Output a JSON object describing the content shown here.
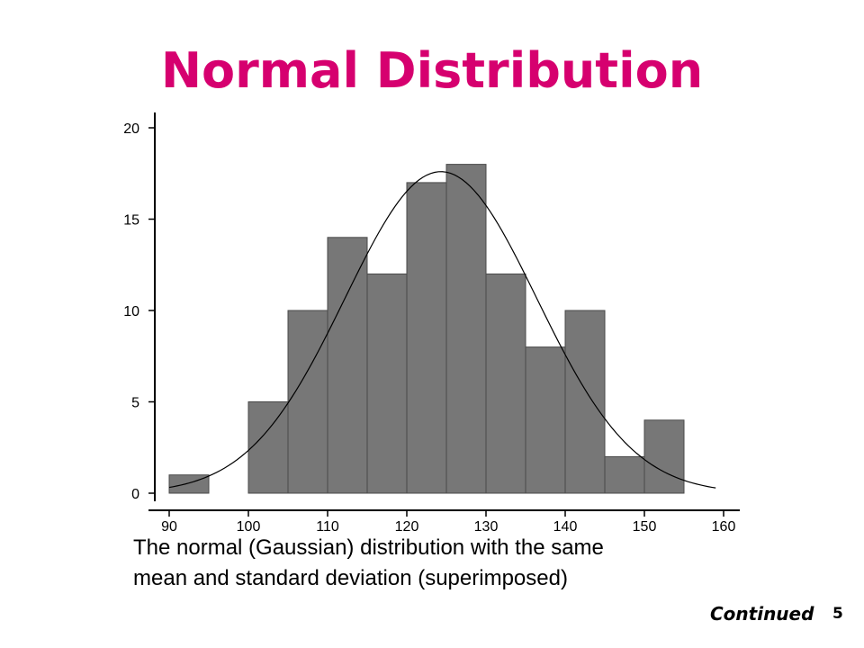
{
  "slide": {
    "title": "Normal Distribution",
    "caption_line1": "The normal (Gaussian) distribution with the same",
    "caption_line2": "mean and standard deviation (superimposed)",
    "continued": "Continued",
    "page_number": "5"
  },
  "colors": {
    "title": "#d6006f",
    "bar_fill": "#777777",
    "bar_stroke": "#4a4a4a",
    "axis": "#000000",
    "curve": "#000000"
  },
  "chart_data": {
    "type": "bar",
    "subtype": "histogram-with-normal-curve",
    "bin_width": 5,
    "bins": [
      {
        "x0": 90,
        "x1": 95,
        "count": 1
      },
      {
        "x0": 95,
        "x1": 100,
        "count": 0
      },
      {
        "x0": 100,
        "x1": 105,
        "count": 5
      },
      {
        "x0": 105,
        "x1": 110,
        "count": 10
      },
      {
        "x0": 110,
        "x1": 115,
        "count": 14
      },
      {
        "x0": 115,
        "x1": 120,
        "count": 12
      },
      {
        "x0": 120,
        "x1": 125,
        "count": 17
      },
      {
        "x0": 125,
        "x1": 130,
        "count": 18
      },
      {
        "x0": 130,
        "x1": 135,
        "count": 12
      },
      {
        "x0": 135,
        "x1": 140,
        "count": 8
      },
      {
        "x0": 140,
        "x1": 145,
        "count": 10
      },
      {
        "x0": 145,
        "x1": 150,
        "count": 2
      },
      {
        "x0": 150,
        "x1": 155,
        "count": 4
      }
    ],
    "normal_curve": {
      "mean": 124.3,
      "sd": 12.1,
      "peak": 17.6,
      "x_range": [
        90,
        159
      ]
    },
    "xlim": [
      90,
      160
    ],
    "ylim": [
      0,
      20
    ],
    "x_ticks": [
      "90",
      "100",
      "110",
      "120",
      "130",
      "140",
      "150",
      "160"
    ],
    "y_ticks": [
      "0",
      "5",
      "10",
      "15",
      "20"
    ],
    "xlabel": "",
    "ylabel": "",
    "grid": false,
    "legend": "none"
  }
}
